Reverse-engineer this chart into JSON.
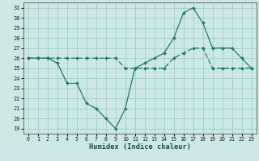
{
  "xlabel": "Humidex (Indice chaleur)",
  "ylabel": "",
  "xlim": [
    -0.5,
    23.5
  ],
  "ylim": [
    18.5,
    31.5
  ],
  "yticks": [
    19,
    20,
    21,
    22,
    23,
    24,
    25,
    26,
    27,
    28,
    29,
    30,
    31
  ],
  "xticks": [
    0,
    1,
    2,
    3,
    4,
    5,
    6,
    7,
    8,
    9,
    10,
    11,
    12,
    13,
    14,
    15,
    16,
    17,
    18,
    19,
    20,
    21,
    22,
    23
  ],
  "bg_color": "#cce8e4",
  "grid_color": "#9ecece",
  "line_color": "#1a7a6e",
  "line1_y": [
    26,
    26,
    26,
    25.5,
    23.5,
    23.5,
    21.5,
    21,
    20,
    19,
    21,
    25,
    25.5,
    26,
    26.5,
    28,
    30.5,
    31,
    29.5,
    27,
    27,
    27,
    26,
    25
  ],
  "line2_y": [
    26,
    26,
    26,
    26,
    26,
    26,
    26,
    26,
    26,
    26,
    25,
    25,
    25,
    25,
    25,
    26,
    26.5,
    27,
    27,
    25,
    25,
    25,
    25,
    25
  ]
}
